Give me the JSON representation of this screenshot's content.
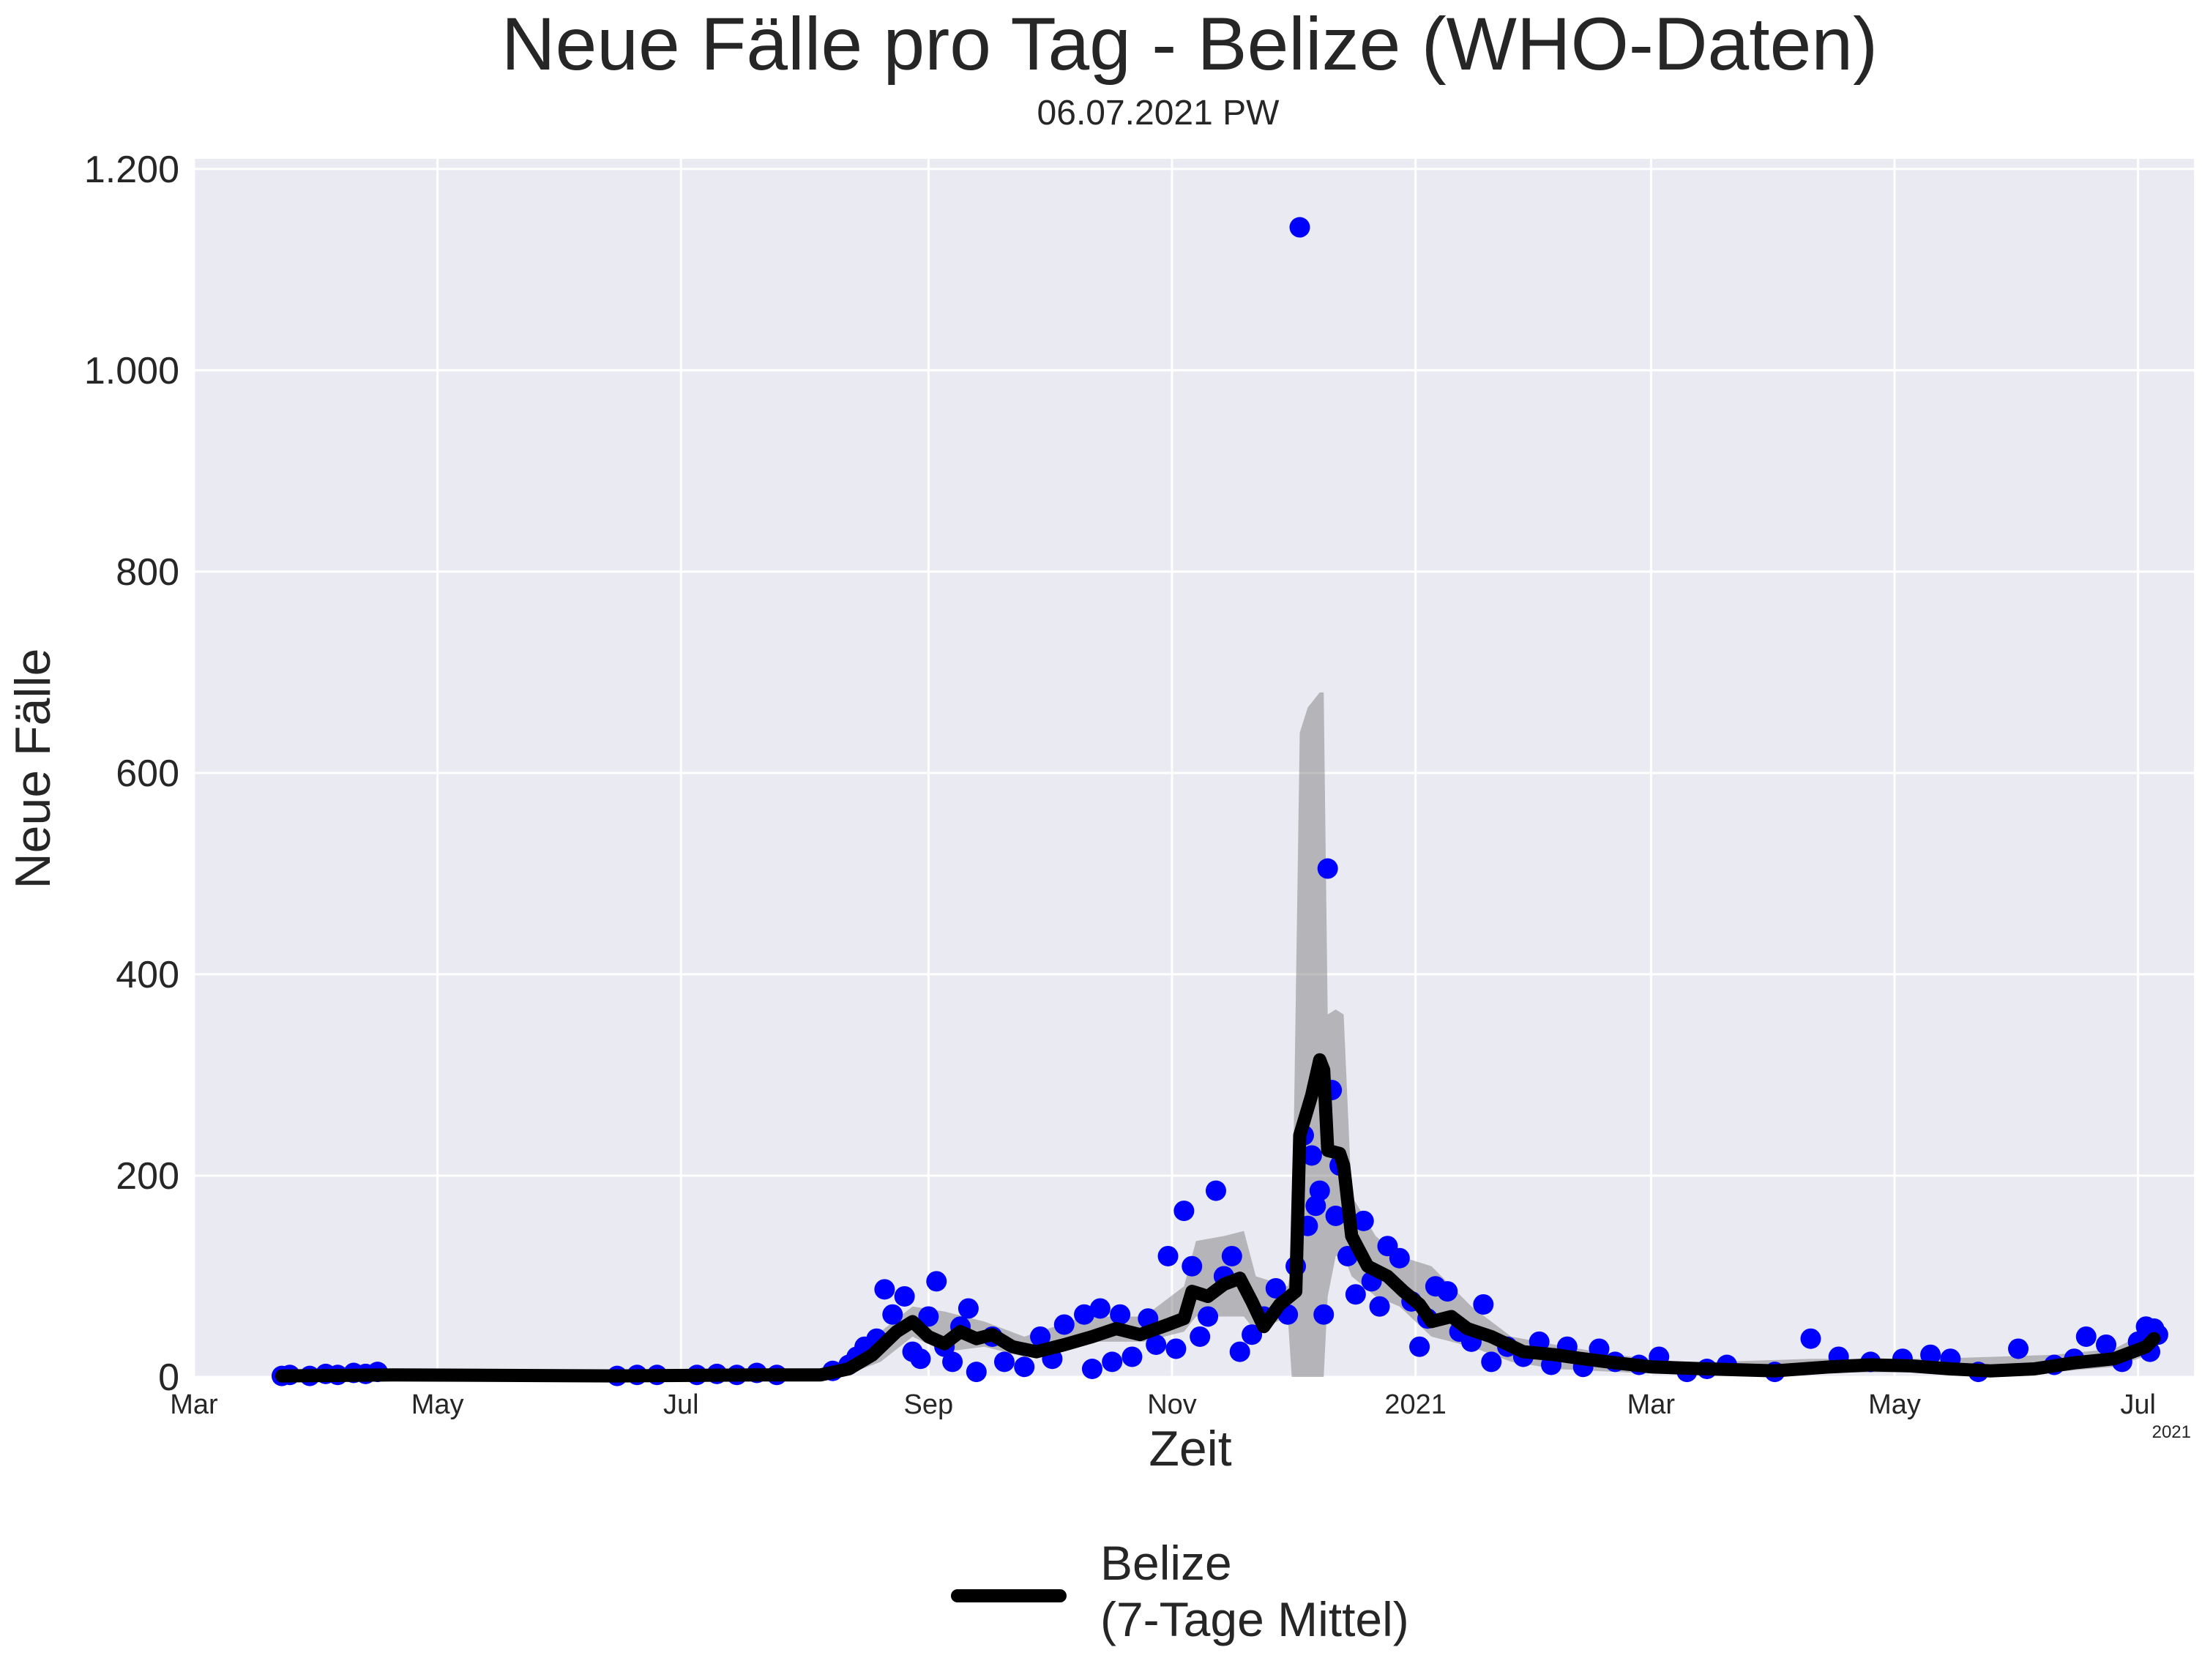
{
  "chart_data": {
    "type": "line",
    "title": "Neue Fälle pro Tag - Belize (WHO-Daten)",
    "subtitle": "06.07.2021 PW",
    "xlabel": "Zeit",
    "ylabel": "Neue Fälle",
    "x_offset_label": "2021",
    "xlim": [
      "2020-03-01",
      "2021-07-15"
    ],
    "ylim": [
      0,
      1210
    ],
    "y_ticks": [
      {
        "value": 0,
        "label": "0"
      },
      {
        "value": 200,
        "label": "200"
      },
      {
        "value": 400,
        "label": "400"
      },
      {
        "value": 600,
        "label": "600"
      },
      {
        "value": 800,
        "label": "800"
      },
      {
        "value": 1000,
        "label": "1.000"
      },
      {
        "value": 1200,
        "label": "1.200"
      }
    ],
    "x_ticks": [
      {
        "date": "2020-03-01",
        "label": "Mar"
      },
      {
        "date": "2020-05-01",
        "label": "May"
      },
      {
        "date": "2020-07-01",
        "label": "Jul"
      },
      {
        "date": "2020-09-01",
        "label": "Sep"
      },
      {
        "date": "2020-11-01",
        "label": "Nov"
      },
      {
        "date": "2021-01-01",
        "label": "2021"
      },
      {
        "date": "2021-03-01",
        "label": "Mar"
      },
      {
        "date": "2021-05-01",
        "label": "May"
      },
      {
        "date": "2021-07-01",
        "label": "Jul"
      }
    ],
    "grid": true,
    "legend_position": "bottom-center",
    "legend": [
      {
        "label_line1": "Belize",
        "label_line2": "(7-Tage Mittel)",
        "color": "#000000"
      }
    ],
    "colors": {
      "daily_points": "#0000ff",
      "rolling_mean": "#000000",
      "band": "#7f7f7f",
      "plot_background": "#eaeaf2"
    },
    "series": [
      {
        "name": "Belize (7-Tage Mittel)",
        "kind": "line",
        "points": [
          [
            "2020-03-23",
            1
          ],
          [
            "2020-04-20",
            2
          ],
          [
            "2020-06-15",
            1
          ],
          [
            "2020-07-20",
            2
          ],
          [
            "2020-08-05",
            2
          ],
          [
            "2020-08-12",
            8
          ],
          [
            "2020-08-18",
            22
          ],
          [
            "2020-08-24",
            45
          ],
          [
            "2020-08-28",
            55
          ],
          [
            "2020-09-01",
            40
          ],
          [
            "2020-09-05",
            33
          ],
          [
            "2020-09-09",
            45
          ],
          [
            "2020-09-13",
            38
          ],
          [
            "2020-09-17",
            42
          ],
          [
            "2020-09-22",
            30
          ],
          [
            "2020-09-28",
            25
          ],
          [
            "2020-10-05",
            32
          ],
          [
            "2020-10-12",
            40
          ],
          [
            "2020-10-18",
            48
          ],
          [
            "2020-10-24",
            42
          ],
          [
            "2020-10-31",
            52
          ],
          [
            "2020-11-04",
            58
          ],
          [
            "2020-11-06",
            85
          ],
          [
            "2020-11-10",
            80
          ],
          [
            "2020-11-14",
            92
          ],
          [
            "2020-11-18",
            98
          ],
          [
            "2020-11-21",
            75
          ],
          [
            "2020-11-24",
            50
          ],
          [
            "2020-11-28",
            72
          ],
          [
            "2020-12-02",
            85
          ],
          [
            "2020-12-03",
            240
          ],
          [
            "2020-12-06",
            280
          ],
          [
            "2020-12-08",
            315
          ],
          [
            "2020-12-09",
            305
          ],
          [
            "2020-12-10",
            225
          ],
          [
            "2020-12-13",
            222
          ],
          [
            "2020-12-14",
            210
          ],
          [
            "2020-12-16",
            140
          ],
          [
            "2020-12-20",
            110
          ],
          [
            "2020-12-25",
            100
          ],
          [
            "2020-12-29",
            85
          ],
          [
            "2021-01-02",
            72
          ],
          [
            "2021-01-05",
            55
          ],
          [
            "2021-01-10",
            60
          ],
          [
            "2021-01-14",
            48
          ],
          [
            "2021-01-20",
            40
          ],
          [
            "2021-01-28",
            25
          ],
          [
            "2021-02-05",
            22
          ],
          [
            "2021-02-12",
            18
          ],
          [
            "2021-02-20",
            14
          ],
          [
            "2021-03-01",
            10
          ],
          [
            "2021-03-15",
            8
          ],
          [
            "2021-04-01",
            6
          ],
          [
            "2021-04-15",
            10
          ],
          [
            "2021-04-25",
            12
          ],
          [
            "2021-05-05",
            11
          ],
          [
            "2021-05-15",
            8
          ],
          [
            "2021-05-25",
            6
          ],
          [
            "2021-06-05",
            8
          ],
          [
            "2021-06-15",
            14
          ],
          [
            "2021-06-25",
            18
          ],
          [
            "2021-07-03",
            30
          ],
          [
            "2021-07-05",
            38
          ]
        ]
      },
      {
        "name": "Neue Fälle (täglich)",
        "kind": "scatter",
        "points": [
          [
            "2020-03-23",
            1
          ],
          [
            "2020-03-25",
            2
          ],
          [
            "2020-03-30",
            1
          ],
          [
            "2020-04-03",
            3
          ],
          [
            "2020-04-06",
            2
          ],
          [
            "2020-04-10",
            4
          ],
          [
            "2020-04-13",
            3
          ],
          [
            "2020-04-16",
            5
          ],
          [
            "2020-06-15",
            1
          ],
          [
            "2020-06-20",
            2
          ],
          [
            "2020-06-25",
            2
          ],
          [
            "2020-07-05",
            2
          ],
          [
            "2020-07-10",
            3
          ],
          [
            "2020-07-15",
            2
          ],
          [
            "2020-07-20",
            4
          ],
          [
            "2020-07-25",
            2
          ],
          [
            "2020-08-08",
            6
          ],
          [
            "2020-08-12",
            12
          ],
          [
            "2020-08-14",
            20
          ],
          [
            "2020-08-16",
            30
          ],
          [
            "2020-08-19",
            38
          ],
          [
            "2020-08-21",
            87
          ],
          [
            "2020-08-23",
            62
          ],
          [
            "2020-08-26",
            80
          ],
          [
            "2020-08-28",
            25
          ],
          [
            "2020-08-30",
            18
          ],
          [
            "2020-09-01",
            60
          ],
          [
            "2020-09-03",
            95
          ],
          [
            "2020-09-05",
            30
          ],
          [
            "2020-09-07",
            15
          ],
          [
            "2020-09-09",
            50
          ],
          [
            "2020-09-11",
            68
          ],
          [
            "2020-09-13",
            5
          ],
          [
            "2020-09-17",
            40
          ],
          [
            "2020-09-20",
            15
          ],
          [
            "2020-09-25",
            10
          ],
          [
            "2020-09-29",
            40
          ],
          [
            "2020-10-02",
            18
          ],
          [
            "2020-10-05",
            52
          ],
          [
            "2020-10-10",
            62
          ],
          [
            "2020-10-12",
            8
          ],
          [
            "2020-10-14",
            68
          ],
          [
            "2020-10-17",
            15
          ],
          [
            "2020-10-19",
            62
          ],
          [
            "2020-10-22",
            20
          ],
          [
            "2020-10-26",
            58
          ],
          [
            "2020-10-28",
            32
          ],
          [
            "2020-10-31",
            120
          ],
          [
            "2020-11-02",
            28
          ],
          [
            "2020-11-04",
            165
          ],
          [
            "2020-11-06",
            110
          ],
          [
            "2020-11-08",
            40
          ],
          [
            "2020-11-10",
            60
          ],
          [
            "2020-11-12",
            185
          ],
          [
            "2020-11-14",
            100
          ],
          [
            "2020-11-16",
            120
          ],
          [
            "2020-11-18",
            25
          ],
          [
            "2020-11-21",
            42
          ],
          [
            "2020-11-24",
            60
          ],
          [
            "2020-11-27",
            88
          ],
          [
            "2020-11-30",
            62
          ],
          [
            "2020-12-02",
            110
          ],
          [
            "2020-12-03",
            1142
          ],
          [
            "2020-12-04",
            240
          ],
          [
            "2020-12-05",
            150
          ],
          [
            "2020-12-06",
            220
          ],
          [
            "2020-12-07",
            170
          ],
          [
            "2020-12-08",
            185
          ],
          [
            "2020-12-09",
            62
          ],
          [
            "2020-12-10",
            505
          ],
          [
            "2020-12-11",
            285
          ],
          [
            "2020-12-12",
            160
          ],
          [
            "2020-12-13",
            210
          ],
          [
            "2020-12-15",
            120
          ],
          [
            "2020-12-17",
            82
          ],
          [
            "2020-12-19",
            155
          ],
          [
            "2020-12-21",
            95
          ],
          [
            "2020-12-23",
            70
          ],
          [
            "2020-12-25",
            130
          ],
          [
            "2020-12-28",
            118
          ],
          [
            "2020-12-31",
            75
          ],
          [
            "2021-01-02",
            30
          ],
          [
            "2021-01-04",
            58
          ],
          [
            "2021-01-06",
            90
          ],
          [
            "2021-01-09",
            85
          ],
          [
            "2021-01-12",
            45
          ],
          [
            "2021-01-15",
            35
          ],
          [
            "2021-01-18",
            72
          ],
          [
            "2021-01-20",
            15
          ],
          [
            "2021-01-24",
            30
          ],
          [
            "2021-01-28",
            20
          ],
          [
            "2021-02-01",
            35
          ],
          [
            "2021-02-04",
            12
          ],
          [
            "2021-02-08",
            30
          ],
          [
            "2021-02-12",
            10
          ],
          [
            "2021-02-16",
            28
          ],
          [
            "2021-02-20",
            15
          ],
          [
            "2021-02-26",
            12
          ],
          [
            "2021-03-03",
            20
          ],
          [
            "2021-03-10",
            5
          ],
          [
            "2021-03-15",
            8
          ],
          [
            "2021-03-20",
            12
          ],
          [
            "2021-04-01",
            5
          ],
          [
            "2021-04-10",
            38
          ],
          [
            "2021-04-17",
            20
          ],
          [
            "2021-04-25",
            15
          ],
          [
            "2021-05-03",
            18
          ],
          [
            "2021-05-10",
            22
          ],
          [
            "2021-05-15",
            18
          ],
          [
            "2021-05-22",
            5
          ],
          [
            "2021-06-01",
            28
          ],
          [
            "2021-06-10",
            12
          ],
          [
            "2021-06-15",
            18
          ],
          [
            "2021-06-18",
            40
          ],
          [
            "2021-06-23",
            32
          ],
          [
            "2021-06-27",
            15
          ],
          [
            "2021-07-01",
            35
          ],
          [
            "2021-07-03",
            50
          ],
          [
            "2021-07-04",
            25
          ],
          [
            "2021-07-05",
            48
          ],
          [
            "2021-07-06",
            42
          ]
        ]
      },
      {
        "name": "Streuband",
        "kind": "band",
        "points": [
          [
            "2020-08-10",
            0,
            10
          ],
          [
            "2020-08-20",
            15,
            45
          ],
          [
            "2020-08-28",
            40,
            70
          ],
          [
            "2020-09-05",
            25,
            65
          ],
          [
            "2020-09-15",
            30,
            55
          ],
          [
            "2020-09-25",
            20,
            40
          ],
          [
            "2020-10-10",
            35,
            60
          ],
          [
            "2020-10-25",
            35,
            60
          ],
          [
            "2020-11-04",
            45,
            90
          ],
          [
            "2020-11-07",
            60,
            135
          ],
          [
            "2020-11-14",
            60,
            140
          ],
          [
            "2020-11-19",
            60,
            145
          ],
          [
            "2020-11-22",
            45,
            100
          ],
          [
            "2020-11-30",
            60,
            90
          ],
          [
            "2020-12-01",
            0,
            110
          ],
          [
            "2020-12-03",
            0,
            640
          ],
          [
            "2020-12-05",
            0,
            665
          ],
          [
            "2020-12-08",
            0,
            680
          ],
          [
            "2020-12-09",
            0,
            680
          ],
          [
            "2020-12-10",
            80,
            360
          ],
          [
            "2020-12-12",
            120,
            365
          ],
          [
            "2020-12-14",
            120,
            360
          ],
          [
            "2020-12-16",
            100,
            180
          ],
          [
            "2020-12-22",
            80,
            140
          ],
          [
            "2020-12-28",
            70,
            120
          ],
          [
            "2021-01-05",
            40,
            110
          ],
          [
            "2021-01-15",
            30,
            70
          ],
          [
            "2021-01-25",
            15,
            40
          ],
          [
            "2021-02-05",
            8,
            32
          ],
          [
            "2021-02-20",
            5,
            22
          ],
          [
            "2021-03-10",
            2,
            14
          ],
          [
            "2021-04-10",
            4,
            18
          ],
          [
            "2021-05-10",
            5,
            18
          ],
          [
            "2021-06-10",
            5,
            22
          ],
          [
            "2021-06-25",
            10,
            28
          ],
          [
            "2021-07-06",
            25,
            50
          ]
        ]
      }
    ]
  }
}
